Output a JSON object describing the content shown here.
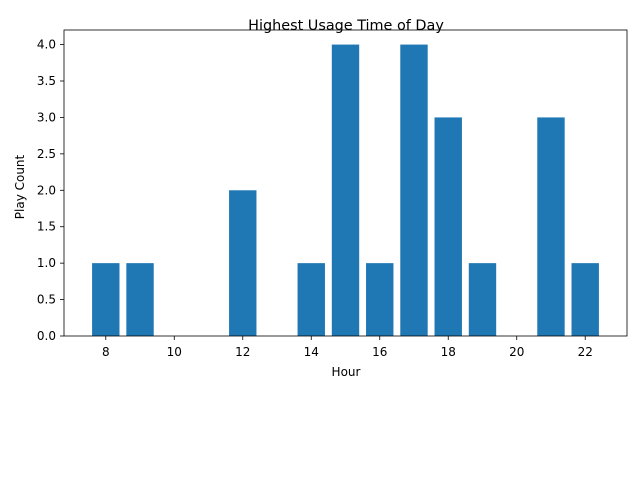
{
  "chart_data": {
    "type": "bar",
    "title": "Highest Usage Time of Day",
    "xlabel": "Hour",
    "ylabel": "Play Count",
    "xlim": [
      6.78,
      23.22
    ],
    "ylim": [
      0,
      4.2
    ],
    "x_ticks": [
      "8",
      "10",
      "12",
      "14",
      "16",
      "18",
      "20",
      "22"
    ],
    "y_ticks": [
      "0.0",
      "0.5",
      "1.0",
      "1.5",
      "2.0",
      "2.5",
      "3.0",
      "3.5",
      "4.0"
    ],
    "bar_color": "#1f77b4",
    "grid": false,
    "legend": "none",
    "bars": [
      {
        "hour": 8,
        "value": 1
      },
      {
        "hour": 9,
        "value": 1
      },
      {
        "hour": 12,
        "value": 2
      },
      {
        "hour": 14,
        "value": 1
      },
      {
        "hour": 15,
        "value": 4
      },
      {
        "hour": 16,
        "value": 1
      },
      {
        "hour": 17,
        "value": 4
      },
      {
        "hour": 18,
        "value": 3
      },
      {
        "hour": 19,
        "value": 1
      },
      {
        "hour": 21,
        "value": 3
      },
      {
        "hour": 22,
        "value": 1
      }
    ]
  }
}
